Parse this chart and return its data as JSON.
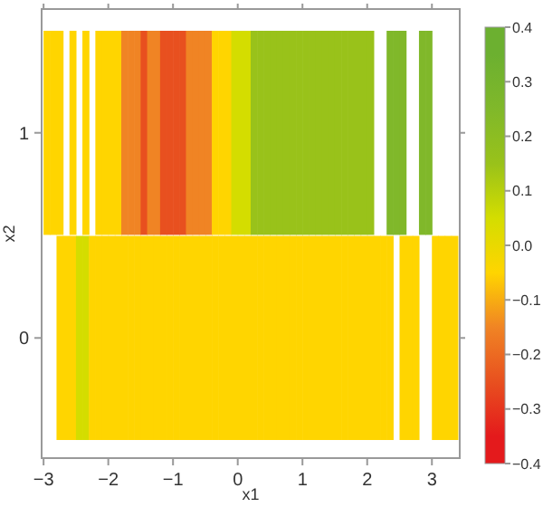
{
  "chart_data": {
    "type": "heatmap",
    "xlabel": "x1",
    "ylabel": "x2",
    "x": [
      -2.95,
      -2.85,
      -2.75,
      -2.65,
      -2.55,
      -2.45,
      -2.35,
      -2.25,
      -2.15,
      -2.05,
      -1.95,
      -1.85,
      -1.75,
      -1.65,
      -1.55,
      -1.45,
      -1.35,
      -1.25,
      -1.15,
      -1.05,
      -0.95,
      -0.85,
      -0.75,
      -0.65,
      -0.55,
      -0.45,
      -0.35,
      -0.25,
      -0.15,
      -0.05,
      0.05,
      0.15,
      0.25,
      0.35,
      0.45,
      0.55,
      0.65,
      0.75,
      0.85,
      0.95,
      1.05,
      1.15,
      1.25,
      1.35,
      1.45,
      1.55,
      1.65,
      1.75,
      1.85,
      1.95,
      2.05,
      2.15,
      2.25,
      2.35,
      2.45,
      2.55,
      2.65,
      2.75,
      2.85,
      2.95,
      3.05,
      3.15,
      3.25,
      3.35
    ],
    "y_categories": [
      "1",
      "0"
    ],
    "cells": [
      [
        -0.05,
        -0.05,
        -0.05,
        null,
        -0.05,
        null,
        -0.05,
        null,
        -0.05,
        -0.05,
        -0.05,
        -0.05,
        -0.15,
        -0.15,
        -0.15,
        -0.25,
        -0.15,
        -0.15,
        -0.25,
        -0.25,
        -0.25,
        -0.25,
        -0.15,
        -0.15,
        -0.15,
        -0.15,
        -0.05,
        -0.05,
        -0.05,
        0.05,
        0.05,
        0.05,
        0.15,
        0.15,
        0.15,
        0.15,
        0.15,
        0.15,
        0.15,
        0.15,
        0.15,
        0.15,
        0.15,
        0.15,
        0.15,
        0.15,
        0.15,
        0.15,
        0.15,
        0.15,
        0.15,
        null,
        null,
        0.25,
        0.25,
        0.25,
        null,
        null,
        0.25,
        0.25,
        null,
        null,
        null,
        null
      ],
      [
        null,
        null,
        -0.05,
        -0.05,
        -0.05,
        0.05,
        0.05,
        -0.05,
        -0.05,
        -0.05,
        -0.05,
        -0.05,
        -0.05,
        -0.05,
        -0.05,
        -0.05,
        -0.05,
        -0.05,
        -0.05,
        -0.05,
        -0.05,
        -0.05,
        -0.05,
        -0.05,
        -0.05,
        -0.05,
        -0.05,
        -0.05,
        -0.05,
        -0.05,
        -0.05,
        -0.05,
        -0.05,
        -0.05,
        -0.05,
        -0.05,
        -0.05,
        -0.05,
        -0.05,
        -0.05,
        -0.05,
        -0.05,
        -0.05,
        -0.05,
        -0.05,
        -0.05,
        -0.05,
        -0.05,
        -0.05,
        -0.05,
        -0.05,
        -0.05,
        -0.05,
        -0.05,
        null,
        -0.05,
        -0.05,
        -0.05,
        null,
        null,
        -0.05,
        -0.05,
        -0.05,
        -0.05
      ]
    ],
    "xlim": [
      -3.03,
      3.43
    ],
    "xticks": [
      -3,
      -2,
      -1,
      0,
      1,
      2,
      3
    ],
    "clim": [
      -0.4,
      0.4
    ],
    "colors": [
      "#e41a1c",
      "#e8501f",
      "#f08424",
      "#ffd500",
      "#d4dd00",
      "#99c21a",
      "#80b82a",
      "#6cb030"
    ],
    "cticks": [
      {
        "value": -0.4,
        "label": "−0.4"
      },
      {
        "value": -0.3,
        "label": "−0.3"
      },
      {
        "value": -0.2,
        "label": "−0.2"
      },
      {
        "value": -0.1,
        "label": "−0.1"
      },
      {
        "value": 0,
        "label": "0.0"
      },
      {
        "value": 0.1,
        "label": "0.1"
      },
      {
        "value": 0.2,
        "label": "0.2"
      },
      {
        "value": 0.3,
        "label": "0.3"
      },
      {
        "value": 0.4,
        "label": "0.4"
      }
    ]
  }
}
